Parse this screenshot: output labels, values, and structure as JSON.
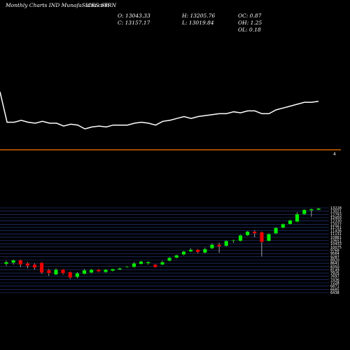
{
  "header": {
    "site": "Monthly Charts IND  MunafaSutra.com",
    "symbol": "ICES STRN",
    "open": "O: 13043.33",
    "high": "H: 13205.76",
    "oc": "OC: 0.87",
    "close": "C: 13157.17",
    "low": "L: 13019.84",
    "oh": "OH: 1.25",
    "ol": "OL: 0.18"
  },
  "colors": {
    "background": "#000000",
    "up": "#00ee00",
    "down": "#ee0000",
    "divider": "#cc6600",
    "grid": "#2a3f8f",
    "line": "#ffffff"
  },
  "chart_data": [
    {
      "type": "line",
      "description_key": "top-panel",
      "values": [
        72,
        40,
        40,
        42,
        40,
        39,
        41,
        39,
        39,
        36,
        38,
        37,
        33,
        35,
        36,
        35,
        37,
        37,
        37,
        39,
        40,
        39,
        37,
        41,
        42,
        44,
        46,
        44,
        46,
        47,
        48,
        49,
        49,
        51,
        50,
        52,
        52,
        49,
        49,
        53,
        55,
        57,
        59,
        61,
        61,
        62
      ],
      "ylim": [
        25,
        95
      ]
    },
    {
      "type": "candlestick",
      "description_key": "bottom-panel",
      "candles": [
        {
          "o": 8700,
          "h": 8950,
          "l": 8550,
          "c": 8850
        },
        {
          "o": 8800,
          "h": 9050,
          "l": 8650,
          "c": 9000
        },
        {
          "o": 9000,
          "h": 9050,
          "l": 8450,
          "c": 8650
        },
        {
          "o": 8750,
          "h": 8850,
          "l": 8350,
          "c": 8550
        },
        {
          "o": 8650,
          "h": 8750,
          "l": 8250,
          "c": 8400
        },
        {
          "o": 8800,
          "h": 8850,
          "l": 7900,
          "c": 8000
        },
        {
          "o": 8200,
          "h": 8300,
          "l": 7750,
          "c": 7950
        },
        {
          "o": 7850,
          "h": 8350,
          "l": 7800,
          "c": 8250
        },
        {
          "o": 8250,
          "h": 8300,
          "l": 7850,
          "c": 7950
        },
        {
          "o": 8050,
          "h": 8100,
          "l": 7500,
          "c": 7600
        },
        {
          "o": 7650,
          "h": 8050,
          "l": 7550,
          "c": 7950
        },
        {
          "o": 7900,
          "h": 8300,
          "l": 7850,
          "c": 8200
        },
        {
          "o": 8000,
          "h": 8300,
          "l": 7950,
          "c": 8250
        },
        {
          "o": 8250,
          "h": 8300,
          "l": 8050,
          "c": 8100
        },
        {
          "o": 8050,
          "h": 8300,
          "l": 8000,
          "c": 8250
        },
        {
          "o": 8150,
          "h": 8300,
          "l": 8100,
          "c": 8300
        },
        {
          "o": 8250,
          "h": 8400,
          "l": 8200,
          "c": 8350
        },
        {
          "o": 8450,
          "h": 8550,
          "l": 8400,
          "c": 8500
        },
        {
          "o": 8450,
          "h": 8850,
          "l": 8400,
          "c": 8750
        },
        {
          "o": 8700,
          "h": 8950,
          "l": 8650,
          "c": 8900
        },
        {
          "o": 8750,
          "h": 8900,
          "l": 8650,
          "c": 8850
        },
        {
          "o": 8650,
          "h": 8700,
          "l": 8400,
          "c": 8450
        },
        {
          "o": 8650,
          "h": 8950,
          "l": 8600,
          "c": 8850
        },
        {
          "o": 8950,
          "h": 9250,
          "l": 8900,
          "c": 9200
        },
        {
          "o": 9200,
          "h": 9450,
          "l": 9150,
          "c": 9400
        },
        {
          "o": 9450,
          "h": 9750,
          "l": 9400,
          "c": 9700
        },
        {
          "o": 9700,
          "h": 9950,
          "l": 9650,
          "c": 9850
        },
        {
          "o": 9850,
          "h": 9900,
          "l": 9550,
          "c": 9650
        },
        {
          "o": 9600,
          "h": 10000,
          "l": 9550,
          "c": 9900
        },
        {
          "o": 9950,
          "h": 10350,
          "l": 9900,
          "c": 10250
        },
        {
          "o": 10250,
          "h": 10400,
          "l": 9600,
          "c": 10100
        },
        {
          "o": 10150,
          "h": 10600,
          "l": 10100,
          "c": 10550
        },
        {
          "o": 10550,
          "h": 10650,
          "l": 10400,
          "c": 10600
        },
        {
          "o": 10550,
          "h": 11050,
          "l": 10500,
          "c": 11000
        },
        {
          "o": 11000,
          "h": 11350,
          "l": 10950,
          "c": 11300
        },
        {
          "o": 11300,
          "h": 11400,
          "l": 10850,
          "c": 11150
        },
        {
          "o": 11250,
          "h": 11300,
          "l": 9300,
          "c": 10450
        },
        {
          "o": 10550,
          "h": 11150,
          "l": 10500,
          "c": 11100
        },
        {
          "o": 11150,
          "h": 11650,
          "l": 11100,
          "c": 11600
        },
        {
          "o": 11600,
          "h": 11950,
          "l": 11550,
          "c": 11900
        },
        {
          "o": 11900,
          "h": 12250,
          "l": 11850,
          "c": 12200
        },
        {
          "o": 12100,
          "h": 12850,
          "l": 12050,
          "c": 12700
        },
        {
          "o": 12700,
          "h": 13100,
          "l": 12650,
          "c": 13050
        },
        {
          "o": 13000,
          "h": 13150,
          "l": 12500,
          "c": 13100
        },
        {
          "o": 13043.33,
          "h": 13205.76,
          "l": 13019.84,
          "c": 13157.17
        }
      ],
      "ylim": [
        6400,
        13200
      ],
      "tick_labels": [
        "13228",
        "13021",
        "12793",
        "12450",
        "12330",
        "12027",
        "11751",
        "11436",
        "11131",
        "10861",
        "10651",
        "10433",
        "10075",
        "9768",
        "9564",
        "9287",
        "8920",
        "8641",
        "8350",
        "8149",
        "7925",
        "7697",
        "7436",
        "7228",
        "6871",
        "6685",
        "6438"
      ]
    }
  ]
}
